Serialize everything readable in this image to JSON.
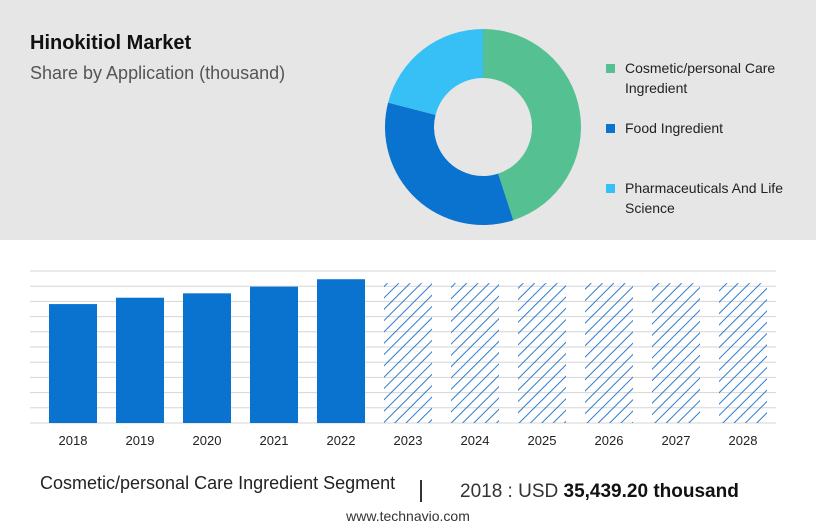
{
  "title": "Hinokitiol Market",
  "subtitle": "Share by Application (thousand)",
  "colors": {
    "cosmetic": "#55c193",
    "food": "#0a72cf",
    "pharma": "#36c0f5",
    "bar": "#0a72cf",
    "hatch": "#2f7ccd",
    "grid": "#d5d5d5",
    "panel": "#e6e6e6"
  },
  "chart_data": [
    {
      "type": "pie",
      "donut": true,
      "title": "Share by Application (thousand)",
      "categories": [
        "Cosmetic/personal Care Ingredient",
        "Food Ingredient",
        "Pharmaceuticals And Life Science"
      ],
      "values": [
        45,
        34,
        21
      ],
      "legend_position": "right"
    },
    {
      "type": "bar",
      "categories": [
        "2018",
        "2019",
        "2020",
        "2021",
        "2022",
        "2023",
        "2024",
        "2025",
        "2026",
        "2027",
        "2028"
      ],
      "values": [
        35.4,
        37.3,
        38.6,
        40.6,
        42.8,
        null,
        null,
        null,
        null,
        null,
        null
      ],
      "forecast_categories": [
        "2023",
        "2024",
        "2025",
        "2026",
        "2027",
        "2028"
      ],
      "forecast_style": "hatched",
      "ylim": [
        0,
        50
      ],
      "grid": true
    }
  ],
  "footer": {
    "segment": "Cosmetic/personal Care Ingredient Segment",
    "year_label": "2018 : USD",
    "value": "35,439.20 thousand",
    "url": "www.technavio.com"
  }
}
